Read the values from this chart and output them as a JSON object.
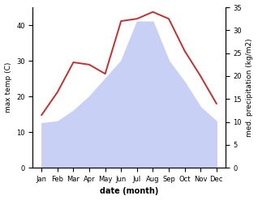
{
  "months": [
    "Jan",
    "Feb",
    "Mar",
    "Apr",
    "May",
    "Jun",
    "Jul",
    "Aug",
    "Sep",
    "Oct",
    "Nov",
    "Dec"
  ],
  "max_temp": [
    12.5,
    13.0,
    16.0,
    20.0,
    25.0,
    30.0,
    41.0,
    41.0,
    30.0,
    24.0,
    17.0,
    13.0
  ],
  "precipitation": [
    11.5,
    16.5,
    23.0,
    22.5,
    20.5,
    32.0,
    32.5,
    34.0,
    32.5,
    25.5,
    20.0,
    14.0
  ],
  "temp_area_color": "#c8d0f5",
  "temp_line_color": "#c03030",
  "ylabel_left": "max temp (C)",
  "ylabel_right": "med. precipitation (kg/m2)",
  "xlabel": "date (month)",
  "ylim_left": [
    0,
    45
  ],
  "ylim_right": [
    0,
    35
  ],
  "yticks_left": [
    0,
    10,
    20,
    30,
    40
  ],
  "yticks_right": [
    0,
    5,
    10,
    15,
    20,
    25,
    30,
    35
  ],
  "linewidth": 1.4,
  "fontsize_ticks": 6.0,
  "fontsize_ylabel": 6.5,
  "fontsize_xlabel": 7.0
}
